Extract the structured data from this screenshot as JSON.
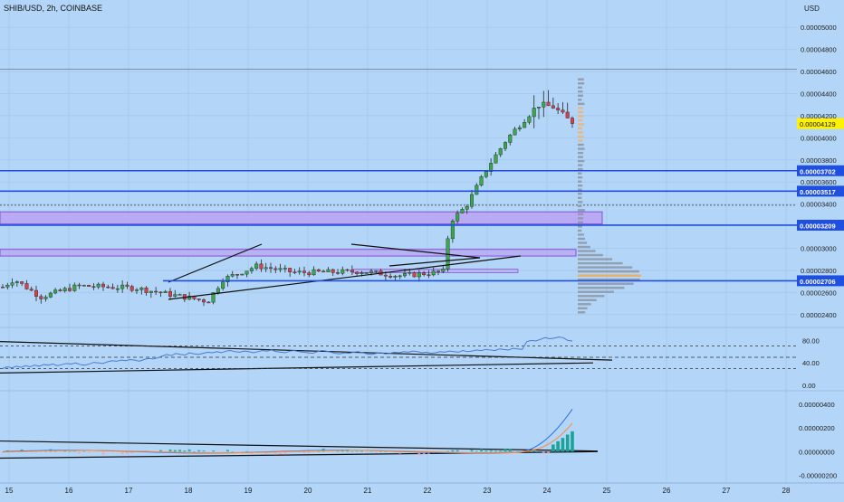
{
  "symbol": "SHIB/USD, 2h, COINBASE",
  "currency": "USD",
  "colors": {
    "background": "#b3d5f7",
    "grid": "#a6cbef",
    "up": "#3ba64a",
    "down": "#d9404a",
    "levels": "#1f4fe0",
    "zone_fill": "#b9a3f2",
    "zone_border": "#8a4fd8",
    "rsi": "#4a7bd0",
    "macd": "#2f6fe0",
    "signal": "#ff8a33",
    "hist_pos": "#1aa398",
    "hist_neg": "#f4a6a6",
    "vp": "#8c95a4",
    "vp_poc": "#f2a94a",
    "price_tag": "#fff200"
  },
  "chart_data": {
    "type": "candlestick",
    "title": "SHIB/USD, 2h, COINBASE",
    "x_tick_labels": [
      "15",
      "16",
      "17",
      "18",
      "19",
      "20",
      "21",
      "22",
      "23",
      "24",
      "25",
      "26",
      "27",
      "28"
    ],
    "price_tick_labels": [
      "0.00005000",
      "0.00004800",
      "0.00004600",
      "0.00004400",
      "0.00004200",
      "0.00004000",
      "0.00003800",
      "0.00003600",
      "0.00003400",
      "0.00003000",
      "0.00002800",
      "0.00002600",
      "0.00002400"
    ],
    "price_range": [
      2.3e-05,
      5.1e-05
    ],
    "current_price": "0.00004129",
    "levels": [
      "0.00003702",
      "0.00003517",
      "0.00003209",
      "0.00002706"
    ],
    "rsi": {
      "tick_labels": [
        "80.00",
        "40.00",
        "0.00"
      ],
      "range": [
        0,
        100
      ],
      "bands": [
        70,
        50,
        30
      ],
      "values": [
        30,
        33,
        31,
        34,
        32,
        35,
        33,
        36,
        34,
        37,
        36,
        38,
        35,
        37,
        39,
        38,
        40,
        37,
        36,
        38,
        41,
        40,
        39,
        42,
        44,
        43,
        45,
        44,
        46,
        45,
        43,
        46,
        48,
        47,
        49,
        52,
        55,
        53,
        57,
        55,
        54,
        58,
        56,
        55,
        57,
        59,
        58,
        60,
        58,
        61,
        62,
        60,
        59,
        61,
        60,
        58,
        60,
        62,
        61,
        63,
        60,
        59,
        58,
        61,
        62,
        60,
        59,
        58,
        57,
        60,
        62,
        61,
        59,
        57,
        56,
        58,
        57,
        59,
        60,
        58,
        56,
        55,
        57,
        58,
        56,
        57,
        59,
        58,
        60,
        59,
        61,
        60,
        58,
        59,
        57,
        58,
        60,
        59,
        61,
        60,
        59,
        62,
        60,
        61,
        63,
        62,
        64,
        63,
        62,
        65,
        64,
        63,
        66,
        65,
        64,
        78,
        80,
        79,
        82,
        85,
        83,
        84,
        86,
        85,
        80,
        79
      ]
    },
    "macd": {
      "tick_labels": [
        "0.00000400",
        "0.00000200",
        "0.00000000",
        "-0.00000200"
      ],
      "range": [
        -2.5e-06,
        5e-06
      ]
    }
  }
}
